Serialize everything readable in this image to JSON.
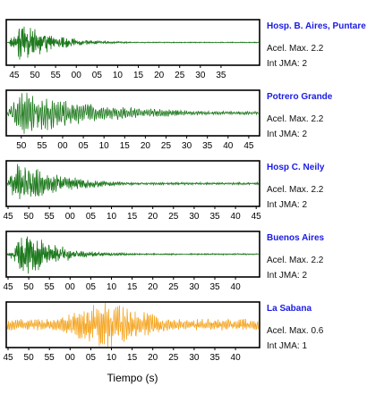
{
  "chart_data": {
    "type": "line",
    "xlabel": "Tiempo (s)",
    "ylabel": "",
    "title": "",
    "panels": [
      {
        "station": "Hosp. B. Aires, Puntare",
        "accel_text": "Acel. Max. 2.2",
        "jma_text": "Int JMA: 2",
        "color": "#1f7a1f",
        "tick_labels": [
          "45",
          "50",
          "55",
          "00",
          "05",
          "10",
          "15",
          "20",
          "25",
          "30",
          "35"
        ],
        "tick_offset_s": 1.5,
        "labels_below": true,
        "envelope": {
          "onset_s": 0.5,
          "peak_s": 4,
          "peak_amp": 1.0,
          "decay": 0.14,
          "floor": 0.02,
          "freq": 2.2
        }
      },
      {
        "station": "Potrero Grande",
        "accel_text": "Acel. Max. 2.2",
        "jma_text": "Int JMA: 2",
        "color": "#1f7a1f",
        "tick_labels": [
          "50",
          "55",
          "00",
          "05",
          "10",
          "15",
          "20",
          "25",
          "30",
          "35",
          "40",
          "45"
        ],
        "tick_offset_s": 3.2,
        "labels_below": true,
        "envelope": {
          "onset_s": 0.0,
          "peak_s": 4,
          "peak_amp": 1.0,
          "decay": 0.055,
          "floor": 0.08,
          "freq": 1.3
        }
      },
      {
        "station": "Hosp C. Neily",
        "accel_text": "Acel. Max. 2.2",
        "jma_text": "Int JMA: 2",
        "color": "#1f7a1f",
        "tick_labels": [
          "45",
          "50",
          "55",
          "00",
          "05",
          "10",
          "15",
          "20",
          "25",
          "30",
          "35",
          "40",
          "45"
        ],
        "tick_offset_s": 0.0,
        "labels_below": true,
        "envelope": {
          "onset_s": 0.0,
          "peak_s": 3,
          "peak_amp": 1.0,
          "decay": 0.1,
          "floor": 0.05,
          "freq": 1.6
        }
      },
      {
        "station": "Buenos Aires",
        "accel_text": "Acel. Max. 2.2",
        "jma_text": "Int JMA: 2",
        "color": "#1f7a1f",
        "tick_labels": [
          "45",
          "50",
          "55",
          "00",
          "05",
          "10",
          "15",
          "20",
          "25",
          "30",
          "35",
          "40"
        ],
        "tick_offset_s": 0.0,
        "labels_below": true,
        "envelope": {
          "onset_s": 0.0,
          "peak_s": 5,
          "peak_amp": 1.0,
          "decay": 0.13,
          "floor": 0.03,
          "freq": 2.0
        }
      },
      {
        "station": "La Sabana",
        "accel_text": "Acel. Max. 0.6",
        "jma_text": "Int JMA: 1",
        "color": "#f5a623",
        "tick_labels": [
          "45",
          "50",
          "55",
          "00",
          "05",
          "10",
          "15",
          "20",
          "25",
          "30",
          "35",
          "40"
        ],
        "tick_offset_s": 0.0,
        "labels_below": true,
        "envelope": {
          "onset_s": 0.0,
          "peak_s": 25,
          "peak_amp": 1.0,
          "decay": 0.07,
          "floor": 0.25,
          "freq": 1.4
        }
      }
    ]
  }
}
